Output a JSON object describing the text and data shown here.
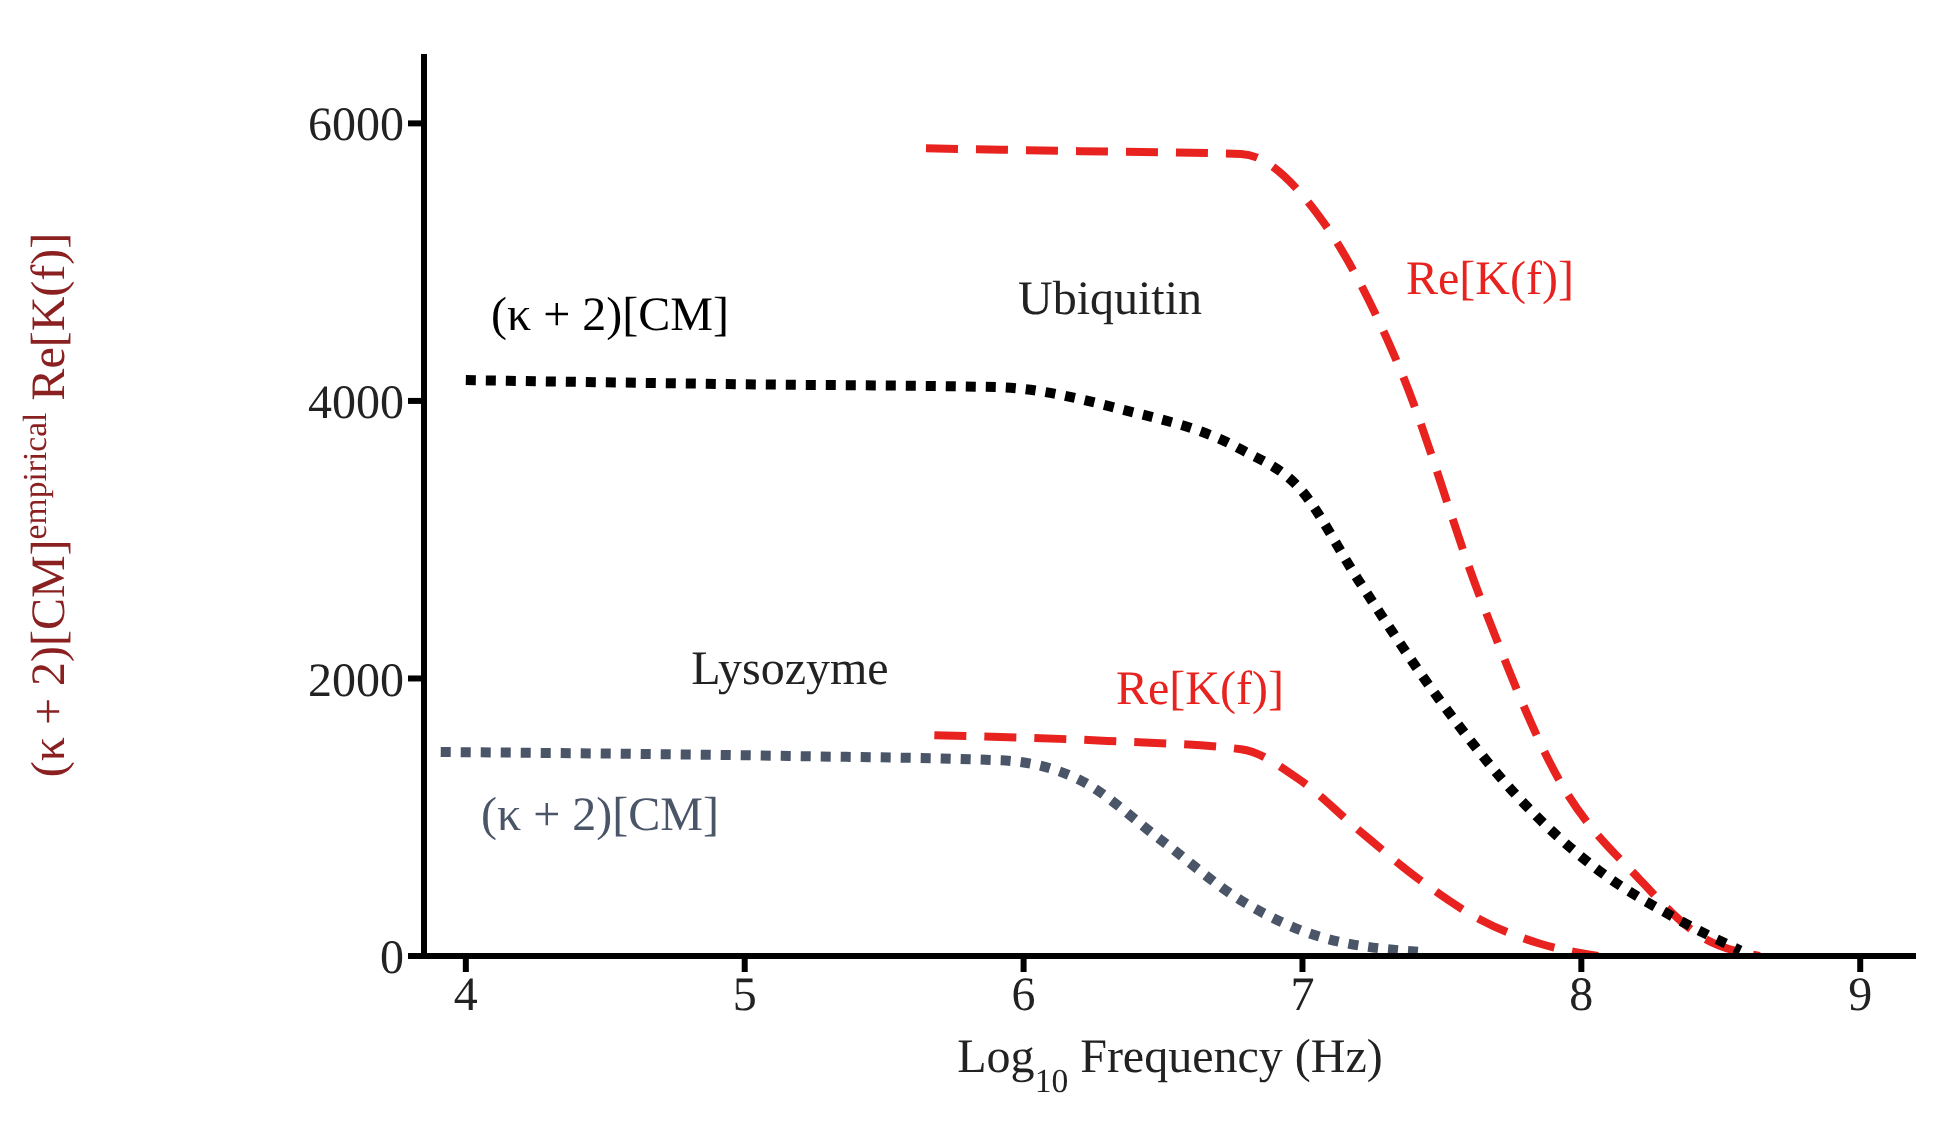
{
  "chart_data": {
    "type": "line",
    "xlabel": "Log$_{10}$ Frequency  (Hz)",
    "ylabel": "(κ + 2)[CM]$^{empirical}$    Re[K(f)]",
    "xlim": [
      3.85,
      9.2
    ],
    "xticks": [
      4,
      5,
      6,
      7,
      8,
      9
    ],
    "ylim": [
      0,
      6500
    ],
    "yticks": [
      0,
      2000,
      4000,
      6000
    ],
    "grid": false,
    "legend": false,
    "marker": "none",
    "series": [
      {
        "name": "Re[K(f)]",
        "color": "#e8231f",
        "line_style": "dashed",
        "x": [
          5.65,
          6.2,
          6.78,
          7.06,
          7.35,
          7.64,
          7.92,
          8.21,
          8.43,
          8.64
        ],
        "values": [
          5820,
          5800,
          5780,
          5330,
          4230,
          2570,
          1270,
          550,
          140,
          0
        ]
      },
      {
        "name": "(κ + 2)[CM]",
        "color": "#000000",
        "line_style": "dotted",
        "x": [
          4.0,
          5.0,
          5.9,
          6.35,
          6.78,
          6.99,
          7.2,
          7.49,
          7.78,
          8.06,
          8.35,
          8.57
        ],
        "values": [
          4150,
          4120,
          4100,
          3940,
          3650,
          3370,
          2710,
          1850,
          1130,
          620,
          260,
          40
        ]
      },
      {
        "name": "Re[K(f)]",
        "color": "#e8231f",
        "line_style": "dashed",
        "x": [
          5.68,
          6.3,
          6.78,
          6.99,
          7.2,
          7.42,
          7.64,
          7.85,
          8.06
        ],
        "values": [
          1590,
          1550,
          1490,
          1270,
          910,
          550,
          260,
          90,
          0
        ]
      },
      {
        "name": "(κ + 2)[CM]",
        "color": "#4a5568",
        "line_style": "dotted",
        "x": [
          3.91,
          5.2,
          5.92,
          6.2,
          6.49,
          6.78,
          7.06,
          7.42
        ],
        "values": [
          1470,
          1440,
          1410,
          1270,
          840,
          400,
          140,
          30
        ]
      }
    ],
    "annotations": [
      "Ubiquitin",
      "Lysozyme"
    ]
  }
}
